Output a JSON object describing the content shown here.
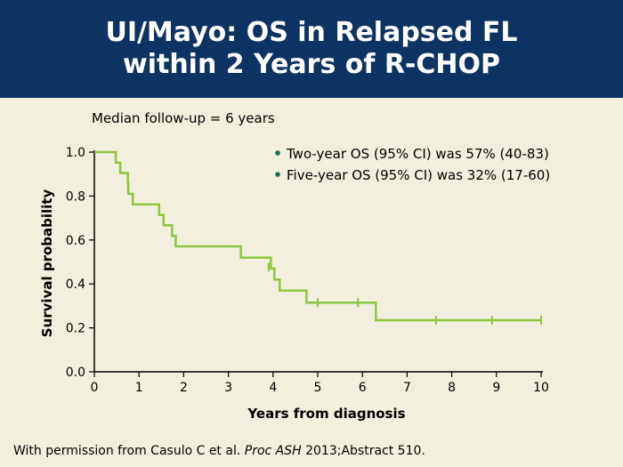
{
  "slide": {
    "title_line1": "UI/Mayo: OS in Relapsed FL",
    "title_line2": "within 2 Years of R-CHOP",
    "followup": "Median follow-up = 6 years",
    "footer_prefix": "With permission from Casulo C et al. ",
    "footer_journal": "Proc ASH",
    "footer_suffix": " 2013;Abstract 510.",
    "colors": {
      "header_bg": "#0c3361",
      "background": "#f3efde",
      "curve": "#8dc63f",
      "bullet": "#1a6b5a"
    }
  },
  "chart_data": {
    "type": "line",
    "title": "",
    "xlabel": "Years from diagnosis",
    "ylabel": "Survival probability",
    "xlim": [
      0,
      10
    ],
    "ylim": [
      0,
      1.0
    ],
    "xticks": [
      "0",
      "1",
      "2",
      "3",
      "4",
      "5",
      "6",
      "7",
      "8",
      "9",
      "10"
    ],
    "yticks": [
      "0.0",
      "0.2",
      "0.4",
      "0.6",
      "0.8",
      "1.0"
    ],
    "grid": false,
    "step": true,
    "series": [
      {
        "values": [
          [
            0,
            1.0
          ],
          [
            0.48,
            1.0
          ],
          [
            0.48,
            0.952
          ],
          [
            0.58,
            0.952
          ],
          [
            0.58,
            0.905
          ],
          [
            0.75,
            0.905
          ],
          [
            0.75,
            0.857
          ],
          [
            0.76,
            0.857
          ],
          [
            0.76,
            0.81
          ],
          [
            0.86,
            0.81
          ],
          [
            0.86,
            0.762
          ],
          [
            1.45,
            0.762
          ],
          [
            1.45,
            0.714
          ],
          [
            1.55,
            0.714
          ],
          [
            1.55,
            0.667
          ],
          [
            1.74,
            0.667
          ],
          [
            1.74,
            0.619
          ],
          [
            1.82,
            0.619
          ],
          [
            1.82,
            0.571
          ],
          [
            3.28,
            0.571
          ],
          [
            3.28,
            0.52
          ],
          [
            3.95,
            0.52
          ],
          [
            3.95,
            0.47
          ],
          [
            4.03,
            0.47
          ],
          [
            4.03,
            0.42
          ],
          [
            4.15,
            0.42
          ],
          [
            4.15,
            0.37
          ],
          [
            4.75,
            0.37
          ],
          [
            4.75,
            0.315
          ],
          [
            6.3,
            0.315
          ],
          [
            6.3,
            0.235
          ],
          [
            10,
            0.235
          ]
        ],
        "censored": [
          [
            3.9,
            0.478
          ],
          [
            5.0,
            0.315
          ],
          [
            5.9,
            0.315
          ],
          [
            7.65,
            0.235
          ],
          [
            8.9,
            0.235
          ],
          [
            10.0,
            0.235
          ]
        ]
      }
    ],
    "annotations": [
      "Two-year OS (95% CI) was 57% (40-83)",
      "Five-year OS (95% CI) was 32% (17-60)"
    ]
  }
}
